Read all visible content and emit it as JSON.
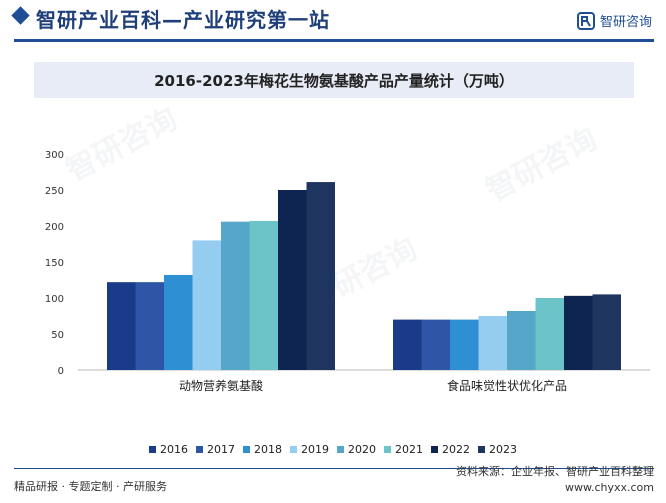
{
  "header": {
    "site_title": "智研产业百科—产业研究第一站",
    "logo_text": "智研咨询"
  },
  "chart_data": {
    "type": "bar",
    "title": "2016-2023年梅花生物氨基酸产品产量统计（万吨）",
    "categories": [
      "动物营养氨基酸",
      "食品味觉性状优化产品"
    ],
    "series": [
      {
        "name": "2016",
        "color": "#1a3a8a",
        "values": [
          122,
          70
        ]
      },
      {
        "name": "2017",
        "color": "#2f56a6",
        "values": [
          122,
          70
        ]
      },
      {
        "name": "2018",
        "color": "#2f8fd3",
        "values": [
          132,
          70
        ]
      },
      {
        "name": "2019",
        "color": "#94cdf0",
        "values": [
          180,
          75
        ]
      },
      {
        "name": "2020",
        "color": "#56a6c9",
        "values": [
          206,
          82
        ]
      },
      {
        "name": "2021",
        "color": "#6cc3c8",
        "values": [
          207,
          100
        ]
      },
      {
        "name": "2022",
        "color": "#0d2550",
        "values": [
          250,
          103
        ]
      },
      {
        "name": "2023",
        "color": "#1e3560",
        "values": [
          261,
          105
        ]
      }
    ],
    "yticks": [
      "0",
      "50",
      "100",
      "150",
      "200",
      "250",
      "300"
    ],
    "ylim": [
      0,
      300
    ]
  },
  "footer": {
    "left": "精品研报 · 专题定制 · 产研服务",
    "source": "资料来源：企业年报、智研产业百科整理",
    "url": "www.chyxx.com"
  },
  "watermark": "智研咨询"
}
